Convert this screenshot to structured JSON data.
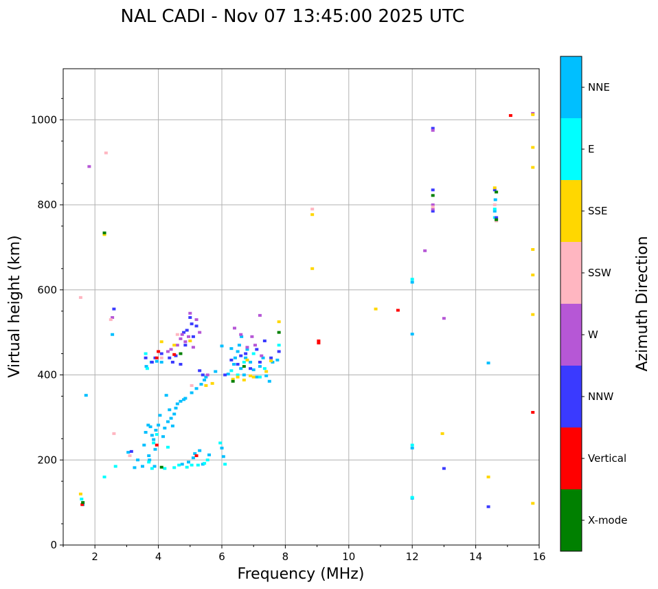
{
  "chart_data": {
    "type": "scatter",
    "title": "NAL CADI - Nov 07 13:45:00 2025 UTC",
    "xlabel": "Frequency (MHz)",
    "ylabel": "Virtual height (km)",
    "xlim": [
      1,
      16
    ],
    "ylim": [
      0,
      1120
    ],
    "x_ticks": [
      2,
      4,
      6,
      8,
      10,
      12,
      14,
      16
    ],
    "y_ticks": [
      0,
      200,
      400,
      600,
      800,
      1000
    ],
    "grid": true,
    "colorbar": {
      "title": "Azimuth Direction",
      "categories": [
        "X-mode",
        "Vertical",
        "NNW",
        "W",
        "SSW",
        "SSE",
        "E",
        "NNE"
      ],
      "colors": [
        "#008000",
        "#ff0000",
        "#3a3aff",
        "#b657d6",
        "#ffb6c1",
        "#ffd700",
        "#00ffff",
        "#00bfff"
      ]
    },
    "series": [
      {
        "name": "NNE",
        "points": [
          [
            1.62,
            95
          ],
          [
            1.72,
            352
          ],
          [
            2.55,
            495
          ],
          [
            3.05,
            218
          ],
          [
            3.25,
            182
          ],
          [
            3.35,
            200
          ],
          [
            3.5,
            185
          ],
          [
            3.55,
            235
          ],
          [
            3.6,
            265
          ],
          [
            3.62,
            420
          ],
          [
            3.68,
            282
          ],
          [
            3.7,
            210
          ],
          [
            3.72,
            200
          ],
          [
            3.75,
            278
          ],
          [
            3.78,
            430
          ],
          [
            3.8,
            258
          ],
          [
            3.85,
            248
          ],
          [
            3.88,
            185
          ],
          [
            3.9,
            225
          ],
          [
            3.92,
            270
          ],
          [
            3.95,
            432
          ],
          [
            4.0,
            282
          ],
          [
            4.05,
            305
          ],
          [
            4.1,
            430
          ],
          [
            4.15,
            255
          ],
          [
            4.2,
            275
          ],
          [
            4.25,
            352
          ],
          [
            4.3,
            290
          ],
          [
            4.35,
            318
          ],
          [
            4.4,
            298
          ],
          [
            4.45,
            280
          ],
          [
            4.5,
            308
          ],
          [
            4.55,
            322
          ],
          [
            4.6,
            332
          ],
          [
            4.7,
            338
          ],
          [
            4.75,
            190
          ],
          [
            4.8,
            342
          ],
          [
            4.85,
            345
          ],
          [
            4.95,
            195
          ],
          [
            5.05,
            358
          ],
          [
            5.1,
            205
          ],
          [
            5.15,
            215
          ],
          [
            5.2,
            368
          ],
          [
            5.3,
            222
          ],
          [
            5.35,
            378
          ],
          [
            5.4,
            190
          ],
          [
            5.45,
            388
          ],
          [
            5.5,
            395
          ],
          [
            5.6,
            212
          ],
          [
            5.8,
            408
          ],
          [
            6.0,
            468
          ],
          [
            6.0,
            228
          ],
          [
            6.05,
            208
          ],
          [
            6.2,
            402
          ],
          [
            6.3,
            462
          ],
          [
            6.38,
            425
          ],
          [
            6.42,
            440
          ],
          [
            6.5,
            455
          ],
          [
            6.55,
            470
          ],
          [
            6.6,
            415
          ],
          [
            6.62,
            490
          ],
          [
            6.7,
            400
          ],
          [
            6.75,
            440
          ],
          [
            6.8,
            460
          ],
          [
            6.9,
            430
          ],
          [
            7.0,
            412
          ],
          [
            7.1,
            395
          ],
          [
            7.2,
            420
          ],
          [
            7.3,
            440
          ],
          [
            7.4,
            398
          ],
          [
            7.5,
            385
          ],
          [
            7.6,
            430
          ],
          [
            7.75,
            435
          ],
          [
            12.0,
            110
          ],
          [
            12.0,
            496
          ],
          [
            12.0,
            228
          ],
          [
            12.0,
            618
          ],
          [
            14.4,
            428
          ],
          [
            14.62,
            812
          ],
          [
            14.6,
            785
          ]
        ]
      },
      {
        "name": "E",
        "points": [
          [
            1.58,
            108
          ],
          [
            2.3,
            160
          ],
          [
            2.65,
            185
          ],
          [
            3.6,
            450
          ],
          [
            3.65,
            415
          ],
          [
            3.7,
            195
          ],
          [
            3.8,
            180
          ],
          [
            3.85,
            240
          ],
          [
            3.95,
            260
          ],
          [
            4.2,
            180
          ],
          [
            4.3,
            230
          ],
          [
            4.5,
            182
          ],
          [
            4.65,
            188
          ],
          [
            4.9,
            183
          ],
          [
            5.05,
            188
          ],
          [
            5.25,
            188
          ],
          [
            5.45,
            192
          ],
          [
            5.55,
            200
          ],
          [
            5.95,
            240
          ],
          [
            6.1,
            190
          ],
          [
            6.3,
            410
          ],
          [
            6.5,
            400
          ],
          [
            6.7,
            430
          ],
          [
            7.0,
            450
          ],
          [
            7.2,
            395
          ],
          [
            7.35,
            415
          ],
          [
            7.8,
            470
          ],
          [
            12.0,
            625
          ],
          [
            12.0,
            235
          ],
          [
            12.0,
            112
          ],
          [
            14.6,
            790
          ],
          [
            14.6,
            770
          ]
        ]
      },
      {
        "name": "NNW",
        "points": [
          [
            2.6,
            555
          ],
          [
            3.15,
            220
          ],
          [
            3.6,
            440
          ],
          [
            3.8,
            430
          ],
          [
            3.9,
            440
          ],
          [
            4.1,
            450
          ],
          [
            4.35,
            440
          ],
          [
            4.45,
            430
          ],
          [
            4.55,
            445
          ],
          [
            4.7,
            425
          ],
          [
            4.8,
            500
          ],
          [
            4.85,
            470
          ],
          [
            4.9,
            505
          ],
          [
            5.0,
            535
          ],
          [
            5.05,
            520
          ],
          [
            5.1,
            490
          ],
          [
            5.2,
            515
          ],
          [
            5.3,
            410
          ],
          [
            5.4,
            400
          ],
          [
            6.1,
            400
          ],
          [
            6.3,
            435
          ],
          [
            6.5,
            425
          ],
          [
            6.6,
            445
          ],
          [
            6.75,
            450
          ],
          [
            6.9,
            415
          ],
          [
            7.1,
            460
          ],
          [
            7.2,
            430
          ],
          [
            7.35,
            480
          ],
          [
            7.55,
            440
          ],
          [
            7.8,
            455
          ],
          [
            12.65,
            980
          ],
          [
            12.65,
            835
          ],
          [
            12.65,
            785
          ],
          [
            13.0,
            180
          ],
          [
            14.4,
            90
          ],
          [
            14.6,
            835
          ],
          [
            14.65,
            770
          ]
        ]
      },
      {
        "name": "W",
        "points": [
          [
            1.82,
            890
          ],
          [
            2.55,
            535
          ],
          [
            4.3,
            455
          ],
          [
            4.4,
            460
          ],
          [
            4.6,
            470
          ],
          [
            4.7,
            485
          ],
          [
            4.75,
            495
          ],
          [
            4.85,
            478
          ],
          [
            4.95,
            490
          ],
          [
            5.0,
            545
          ],
          [
            5.1,
            465
          ],
          [
            5.2,
            530
          ],
          [
            5.3,
            500
          ],
          [
            5.55,
            400
          ],
          [
            6.4,
            510
          ],
          [
            6.6,
            495
          ],
          [
            6.8,
            465
          ],
          [
            6.95,
            490
          ],
          [
            7.05,
            470
          ],
          [
            7.2,
            540
          ],
          [
            7.25,
            445
          ],
          [
            12.4,
            692
          ],
          [
            12.65,
            975
          ],
          [
            12.65,
            800
          ],
          [
            12.65,
            790
          ],
          [
            13.0,
            533
          ],
          [
            15.8,
            1015
          ]
        ]
      },
      {
        "name": "SSW",
        "points": [
          [
            1.55,
            582
          ],
          [
            2.35,
            922
          ],
          [
            2.5,
            530
          ],
          [
            2.6,
            262
          ],
          [
            3.1,
            210
          ],
          [
            4.1,
            440
          ],
          [
            4.6,
            495
          ],
          [
            5.05,
            375
          ],
          [
            8.85,
            790
          ],
          [
            12.65,
            795
          ],
          [
            14.65,
            762
          ],
          [
            14.6,
            800
          ]
        ]
      },
      {
        "name": "SSE",
        "points": [
          [
            1.55,
            120
          ],
          [
            2.3,
            730
          ],
          [
            4.1,
            478
          ],
          [
            4.5,
            470
          ],
          [
            5.0,
            480
          ],
          [
            5.5,
            375
          ],
          [
            5.7,
            380
          ],
          [
            6.35,
            390
          ],
          [
            6.5,
            395
          ],
          [
            6.7,
            388
          ],
          [
            6.8,
            435
          ],
          [
            6.9,
            398
          ],
          [
            7.0,
            395
          ],
          [
            7.4,
            408
          ],
          [
            7.55,
            433
          ],
          [
            7.8,
            525
          ],
          [
            8.85,
            777
          ],
          [
            8.85,
            650
          ],
          [
            10.85,
            555
          ],
          [
            12.95,
            262
          ],
          [
            14.4,
            160
          ],
          [
            14.6,
            840
          ],
          [
            15.8,
            1012
          ],
          [
            15.8,
            935
          ],
          [
            15.8,
            888
          ],
          [
            15.8,
            695
          ],
          [
            15.8,
            635
          ],
          [
            15.8,
            542
          ],
          [
            15.8,
            98
          ]
        ]
      },
      {
        "name": "Vertical",
        "points": [
          [
            1.6,
            95
          ],
          [
            3.95,
            440
          ],
          [
            3.95,
            235
          ],
          [
            4.0,
            455
          ],
          [
            4.5,
            448
          ],
          [
            5.2,
            210
          ],
          [
            9.05,
            480
          ],
          [
            9.05,
            475
          ],
          [
            11.55,
            552
          ],
          [
            15.1,
            1010
          ],
          [
            15.8,
            312
          ]
        ]
      },
      {
        "name": "X-mode",
        "points": [
          [
            1.62,
            100
          ],
          [
            2.3,
            734
          ],
          [
            4.1,
            183
          ],
          [
            4.7,
            450
          ],
          [
            6.35,
            385
          ],
          [
            6.7,
            420
          ],
          [
            7.8,
            500
          ],
          [
            12.65,
            822
          ],
          [
            14.65,
            830
          ],
          [
            14.65,
            765
          ]
        ]
      }
    ]
  }
}
